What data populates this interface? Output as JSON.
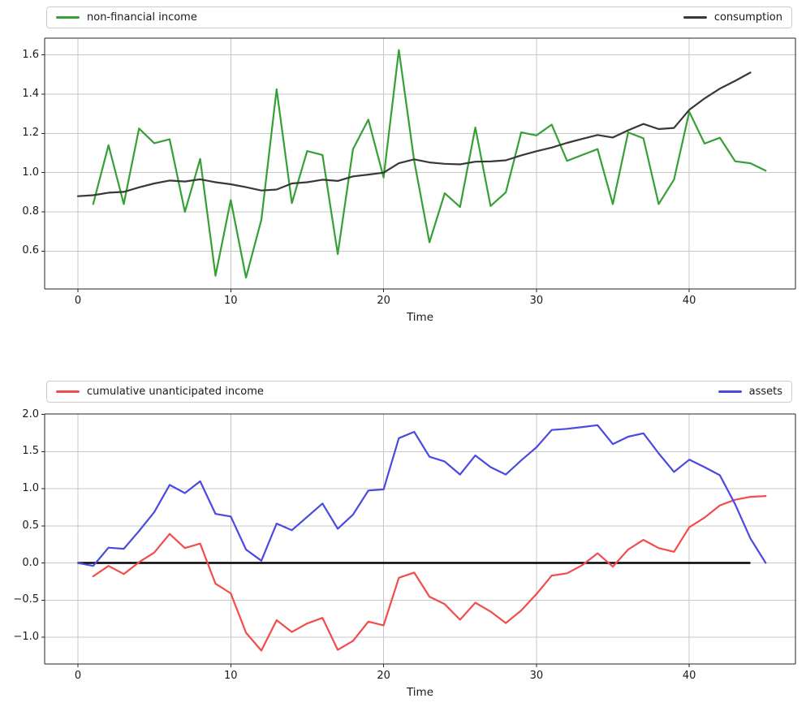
{
  "chart_data": [
    {
      "type": "line",
      "title": "",
      "xlabel": "Time",
      "ylabel": "",
      "grid": true,
      "legend_position": "top-expanded",
      "xlim": [
        -2.2,
        47.0
      ],
      "ylim": [
        0.41,
        1.69
      ],
      "xticks": [
        {
          "v": 0,
          "label": "0"
        },
        {
          "v": 10,
          "label": "10"
        },
        {
          "v": 20,
          "label": "20"
        },
        {
          "v": 30,
          "label": "30"
        },
        {
          "v": 40,
          "label": "40"
        }
      ],
      "yticks": [
        {
          "v": 0.6,
          "label": "0.6"
        },
        {
          "v": 0.8,
          "label": "0.8"
        },
        {
          "v": 1.0,
          "label": "1.0"
        },
        {
          "v": 1.2,
          "label": "1.2"
        },
        {
          "v": 1.4,
          "label": "1.4"
        },
        {
          "v": 1.6,
          "label": "1.6"
        }
      ],
      "series": [
        {
          "name": "non-financial income",
          "color": "#35a035",
          "start_t": 1,
          "values": [
            0.84,
            1.14,
            0.84,
            1.225,
            1.15,
            1.17,
            0.8,
            1.07,
            0.475,
            0.86,
            0.465,
            0.76,
            1.425,
            0.845,
            1.11,
            1.09,
            0.585,
            1.12,
            1.27,
            0.975,
            1.625,
            1.06,
            0.645,
            0.895,
            0.825,
            1.23,
            0.83,
            0.9,
            1.205,
            1.19,
            1.245,
            1.06,
            1.09,
            1.12,
            0.84,
            1.205,
            1.175,
            0.84,
            0.965,
            1.31,
            1.148,
            1.178,
            1.058,
            1.048,
            1.01
          ]
        },
        {
          "name": "consumption",
          "color": "#383838",
          "start_t": 0,
          "values": [
            0.88,
            0.885,
            0.898,
            0.902,
            0.925,
            0.945,
            0.96,
            0.955,
            0.966,
            0.951,
            0.941,
            0.926,
            0.909,
            0.914,
            0.945,
            0.951,
            0.964,
            0.958,
            0.981,
            0.99,
            1.0,
            1.048,
            1.068,
            1.052,
            1.045,
            1.042,
            1.056,
            1.057,
            1.063,
            1.088,
            1.109,
            1.128,
            1.152,
            1.172,
            1.192,
            1.179,
            1.216,
            1.248,
            1.222,
            1.228,
            1.32,
            1.378,
            1.428,
            1.468,
            1.51
          ]
        }
      ]
    },
    {
      "type": "line",
      "title": "",
      "xlabel": "Time",
      "ylabel": "",
      "grid": true,
      "legend_position": "top-expanded",
      "xlim": [
        -2.2,
        47.0
      ],
      "ylim": [
        -1.35,
        2.02
      ],
      "xticks": [
        {
          "v": 0,
          "label": "0"
        },
        {
          "v": 10,
          "label": "10"
        },
        {
          "v": 20,
          "label": "20"
        },
        {
          "v": 30,
          "label": "30"
        },
        {
          "v": 40,
          "label": "40"
        }
      ],
      "yticks": [
        {
          "v": -1.0,
          "label": "−1.0"
        },
        {
          "v": -0.5,
          "label": "−0.5"
        },
        {
          "v": 0.0,
          "label": "0.0"
        },
        {
          "v": 0.5,
          "label": "0.5"
        },
        {
          "v": 1.0,
          "label": "1.0"
        },
        {
          "v": 1.5,
          "label": "1.5"
        },
        {
          "v": 2.0,
          "label": "2.0"
        }
      ],
      "zero_line": {
        "color": "#000000",
        "from_t": 0,
        "to_t": 44,
        "value": 0.0
      },
      "series": [
        {
          "name": "cumulative unanticipated income",
          "color": "#f24c4c",
          "start_t": 1,
          "values": [
            -0.18,
            -0.04,
            -0.15,
            0.01,
            0.14,
            0.39,
            0.2,
            0.26,
            -0.28,
            -0.41,
            -0.94,
            -1.18,
            -0.77,
            -0.93,
            -0.815,
            -0.74,
            -1.17,
            -1.05,
            -0.79,
            -0.84,
            -0.2,
            -0.13,
            -0.455,
            -0.555,
            -0.765,
            -0.535,
            -0.655,
            -0.81,
            -0.64,
            -0.42,
            -0.17,
            -0.14,
            -0.03,
            0.13,
            -0.05,
            0.18,
            0.31,
            0.2,
            0.15,
            0.48,
            0.61,
            0.775,
            0.85,
            0.89,
            0.9
          ]
        },
        {
          "name": "assets",
          "color": "#4a4ae0",
          "start_t": 0,
          "values": [
            0.0,
            -0.04,
            0.205,
            0.19,
            0.43,
            0.685,
            1.05,
            0.94,
            1.1,
            0.66,
            0.625,
            0.18,
            0.03,
            0.53,
            0.44,
            0.62,
            0.8,
            0.46,
            0.65,
            0.975,
            0.99,
            1.68,
            1.765,
            1.43,
            1.365,
            1.19,
            1.447,
            1.29,
            1.19,
            1.38,
            1.556,
            1.79,
            1.805,
            1.83,
            1.855,
            1.6,
            1.7,
            1.745,
            1.475,
            1.225,
            1.39,
            1.29,
            1.18,
            0.79,
            0.33,
            0.0
          ]
        }
      ],
      "style": {
        "grid_color": "#c7c7c7",
        "spine_color": "#262626",
        "background": "#ffffff"
      }
    }
  ]
}
